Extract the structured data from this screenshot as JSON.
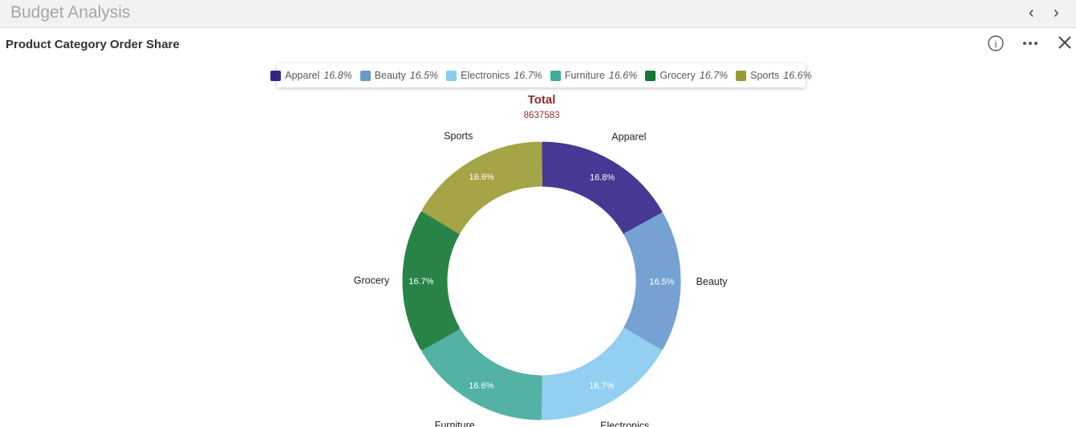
{
  "app": {
    "title": "Budget Analysis",
    "prev_icon": "chevron-left-icon",
    "next_icon": "chevron-right-icon"
  },
  "panel": {
    "title": "Product Category Order Share",
    "info_icon": "info-icon",
    "more_icon": "more-icon",
    "close_icon": "close-icon"
  },
  "chart_data": {
    "type": "pie",
    "variant": "donut",
    "title": "Total",
    "subtitle": "8637583",
    "legend_position": "top",
    "categories": [
      "Apparel",
      "Beauty",
      "Electronics",
      "Furniture",
      "Grocery",
      "Sports"
    ],
    "values": [
      16.8,
      16.5,
      16.7,
      16.6,
      16.7,
      16.6
    ],
    "labels": [
      "16.8%",
      "16.5%",
      "16.7%",
      "16.6%",
      "16.7%",
      "16.6%"
    ],
    "legend_colors": [
      "#31258a",
      "#6699cc",
      "#88ccee",
      "#44aa99",
      "#117733",
      "#999933"
    ],
    "colors": [
      "#463893",
      "#75a2d2",
      "#93cff0",
      "#53b2a3",
      "#288446",
      "#a5a446"
    ]
  }
}
